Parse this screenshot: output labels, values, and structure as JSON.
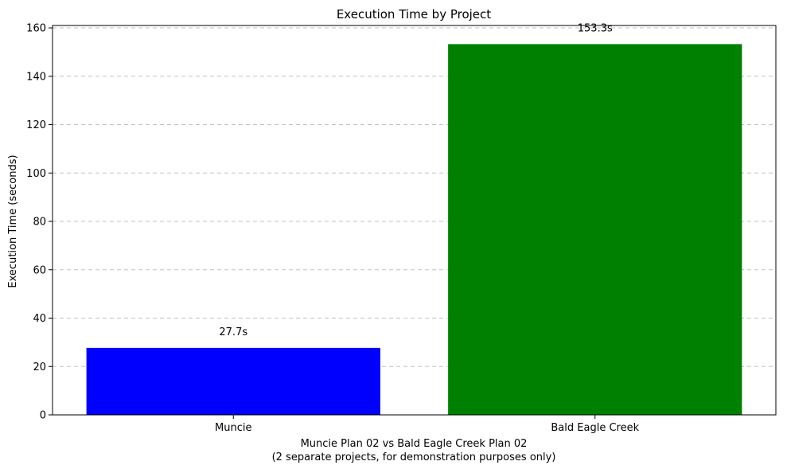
{
  "chart_data": {
    "type": "bar",
    "title": "Execution Time by Project",
    "xlabel": "Muncie Plan 02 vs Bald Eagle Creek Plan 02",
    "xlabel_line2": "(2 separate projects, for demonstration purposes only)",
    "ylabel": "Execution Time (seconds)",
    "categories": [
      "Muncie",
      "Bald Eagle Creek"
    ],
    "values": [
      27.7,
      153.3
    ],
    "data_labels": [
      "27.7s",
      "153.3s"
    ],
    "colors": [
      "#0000ff",
      "#008000"
    ],
    "ylim": [
      0,
      161
    ],
    "yticks": [
      0,
      20,
      40,
      60,
      80,
      100,
      120,
      140,
      160
    ],
    "grid": "y-dashed",
    "legend": "none"
  }
}
